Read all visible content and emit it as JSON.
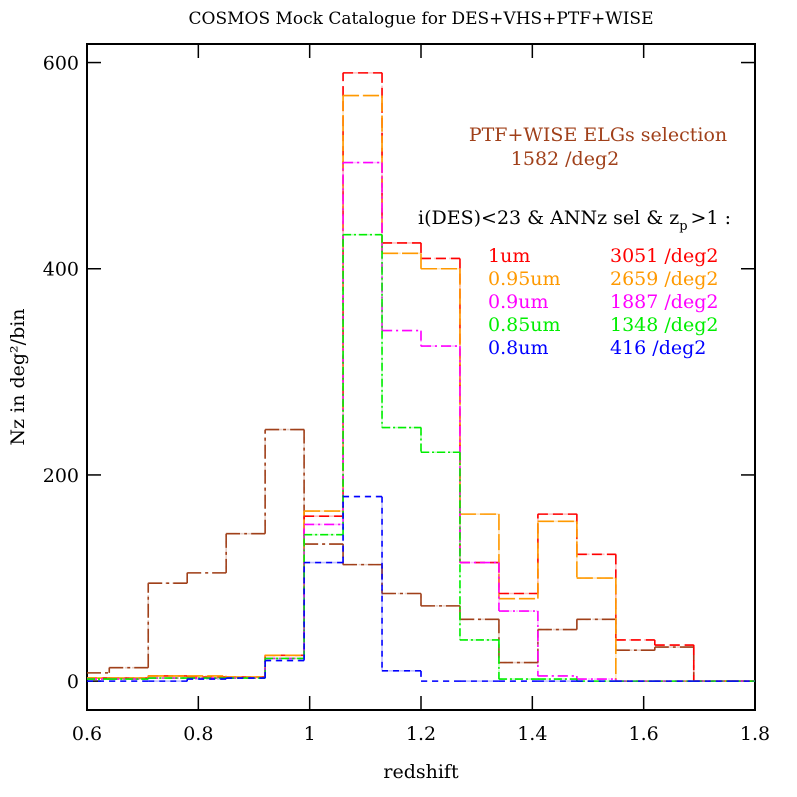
{
  "chart_data": {
    "type": "step-histogram",
    "title": "COSMOS Mock Catalogue for DES+VHS+PTF+WISE",
    "xlabel": "redshift",
    "ylabel": "Nz in deg²/bin",
    "xlim": [
      0.6,
      1.8
    ],
    "xticks": [
      0.6,
      0.8,
      1,
      1.2,
      1.4,
      1.6,
      1.8
    ],
    "ylim": [
      -28,
      618
    ],
    "yticks": [
      0,
      200,
      400,
      600
    ],
    "bins": [
      0.6,
      0.64,
      0.71,
      0.78,
      0.85,
      0.92,
      0.99,
      1.06,
      1.13,
      1.2,
      1.27,
      1.34,
      1.41,
      1.48,
      1.55,
      1.62,
      1.69,
      1.76,
      1.8
    ],
    "annotations": {
      "selection": [
        "PTF+WISE ELGs selection",
        "1582 /deg2"
      ],
      "header": {
        "text": "i(DES)<23 & ANNz sel & z",
        "sub": "p",
        "tail": ">1 :"
      }
    },
    "series": [
      {
        "name": "PTF+WISE ELGs selection",
        "color": "#a0401a",
        "dash": "14 4 3 4",
        "values": [
          8,
          13,
          95,
          105,
          143,
          244,
          133,
          113,
          85,
          73,
          60,
          18,
          50,
          60,
          30,
          33,
          0,
          0
        ]
      },
      {
        "name": "1um",
        "density": "3051 /deg2",
        "color": "#ff0000",
        "dash": "10 5",
        "values": [
          3,
          3,
          5,
          4,
          4,
          25,
          160,
          590,
          425,
          410,
          115,
          85,
          162,
          123,
          40,
          35,
          0,
          0
        ]
      },
      {
        "name": "0.95um",
        "density": "2659 /deg2",
        "color": "#ff9900",
        "dash": "16 4",
        "values": [
          3,
          3,
          5,
          5,
          4,
          25,
          165,
          568,
          415,
          400,
          162,
          80,
          155,
          100,
          0,
          0,
          0,
          0
        ]
      },
      {
        "name": "0.9um",
        "density": "1887 /deg2",
        "color": "#ff00ff",
        "dash": "10 4 2 4",
        "values": [
          2,
          2,
          3,
          3,
          3,
          22,
          152,
          503,
          340,
          325,
          115,
          68,
          5,
          2,
          0,
          0,
          0,
          0
        ]
      },
      {
        "name": "0.85um",
        "density": "1348 /deg2",
        "color": "#00ee00",
        "dash": "8 3 2 3",
        "values": [
          2,
          2,
          3,
          3,
          3,
          22,
          142,
          433,
          246,
          222,
          40,
          2,
          2,
          0,
          0,
          0,
          0,
          0
        ]
      },
      {
        "name": "0.8um",
        "density": "416 /deg2",
        "color": "#0000ff",
        "dash": "6 5",
        "values": [
          0,
          0,
          0,
          2,
          3,
          20,
          115,
          179,
          10,
          0,
          0,
          0,
          0,
          0,
          0,
          0,
          0,
          0
        ]
      }
    ]
  }
}
